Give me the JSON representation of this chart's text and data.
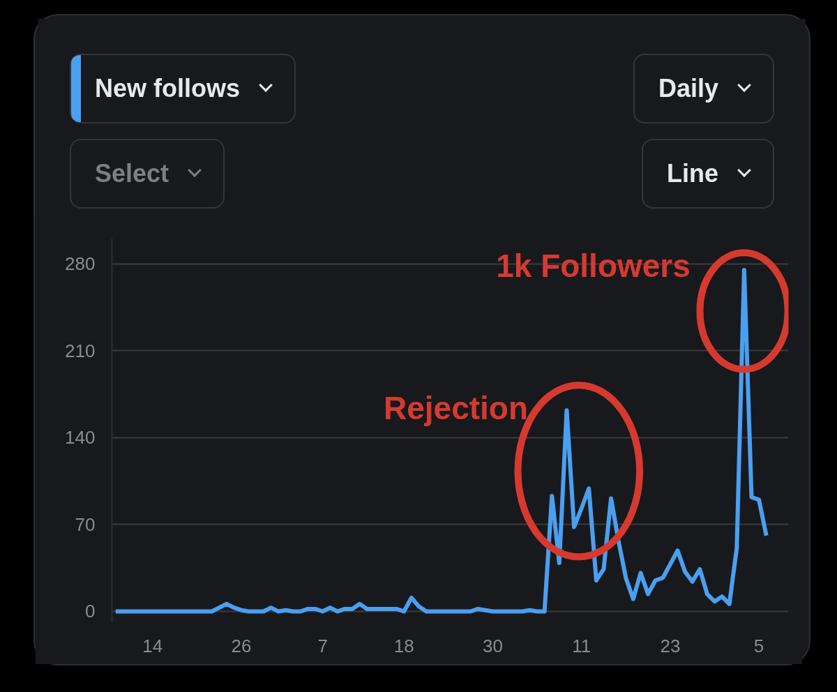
{
  "chart_data": {
    "type": "line",
    "categories": [
      null,
      null,
      null,
      null,
      null,
      "14",
      null,
      null,
      null,
      null,
      null,
      null,
      null,
      null,
      null,
      null,
      null,
      "26",
      null,
      null,
      null,
      null,
      null,
      null,
      null,
      null,
      null,
      null,
      "7",
      null,
      null,
      null,
      null,
      null,
      null,
      null,
      null,
      null,
      null,
      "18",
      null,
      null,
      null,
      null,
      null,
      null,
      null,
      null,
      null,
      null,
      null,
      "30",
      null,
      null,
      null,
      null,
      null,
      null,
      null,
      null,
      null,
      null,
      null,
      "11",
      null,
      null,
      null,
      null,
      null,
      null,
      null,
      null,
      null,
      null,
      null,
      "23",
      null,
      null,
      null,
      null,
      null,
      null,
      null,
      null,
      null,
      null,
      null,
      "5",
      null
    ],
    "series": [
      {
        "color": "#4a9ff0",
        "values": [
          0,
          0,
          0,
          0,
          0,
          0,
          0,
          0,
          0,
          0,
          0,
          0,
          0,
          0,
          3,
          6,
          3,
          1,
          0,
          0,
          0,
          3,
          0,
          1,
          0,
          0,
          2,
          2,
          0,
          3,
          0,
          2,
          2,
          6,
          2,
          2,
          2,
          2,
          2,
          0,
          11,
          4,
          0,
          0,
          0,
          0,
          0,
          0,
          0,
          2,
          1,
          0,
          0,
          0,
          0,
          0,
          1,
          0,
          0,
          93,
          39,
          162,
          68,
          83,
          99,
          25,
          34,
          91,
          57,
          27,
          10,
          31,
          14,
          25,
          27,
          38,
          49,
          32,
          24,
          34,
          14,
          8,
          12,
          6,
          51,
          275,
          92,
          90,
          61
        ]
      }
    ],
    "ylim": [
      -9,
      300
    ],
    "yticks": [
      0,
      70,
      140,
      210,
      280
    ],
    "grid": "y",
    "line_style": "solid",
    "annotations": [
      "New follows",
      "Daily",
      "Select",
      "Line",
      "Rejection",
      "1k Followers"
    ]
  }
}
